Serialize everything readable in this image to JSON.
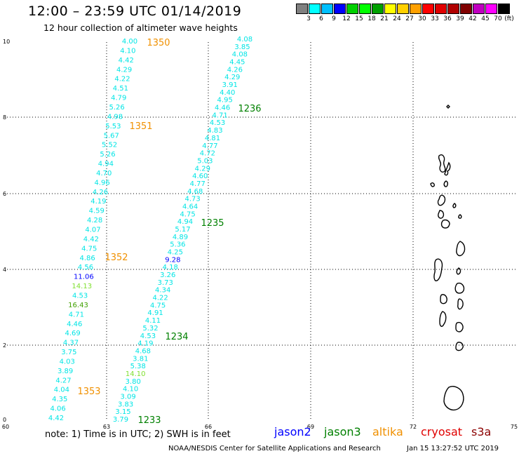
{
  "title": "12:00 – 23:59 UTC 01/14/2019",
  "subtitle": "12 hour collection of altimeter wave heights",
  "colors": {
    "cyan": "#00E5E5",
    "orange": "#F09000",
    "green": "#008000",
    "blue": "#0000FF",
    "lightgreen": "#80E030",
    "olive": "#40A000",
    "darkred": "#8B0000",
    "red": "#E00000",
    "land": "#000000",
    "grid": "#000000"
  },
  "scale": {
    "colors": [
      "#808080",
      "#00FFFF",
      "#00C0FF",
      "#0000FF",
      "#00D000",
      "#00FF00",
      "#00A000",
      "#FFFF00",
      "#FFD000",
      "#FFA000",
      "#FF0000",
      "#E00000",
      "#B00000",
      "#800000",
      "#C000C0",
      "#FF00FF",
      "#000000"
    ],
    "labels": [
      "3",
      "6",
      "9",
      "12",
      "15",
      "18",
      "21",
      "24",
      "27",
      "30",
      "33",
      "36",
      "39",
      "42",
      "45",
      "70"
    ],
    "unit": "(ft)"
  },
  "axes": {
    "x_ticks": [
      "60",
      "63",
      "66",
      "69",
      "72",
      "75"
    ],
    "y_ticks": [
      "0",
      "2",
      "4",
      "6",
      "8",
      "10"
    ]
  },
  "tracks": [
    {
      "name": "1350-1353",
      "values": [
        "4.42",
        "4.06",
        "4.35",
        "4.04",
        "4.27",
        "3.89",
        "4.03",
        "3.75",
        "4.37",
        "4.69",
        "4.46",
        "4.71",
        "16.43",
        "4.53",
        "14.13",
        "11.06",
        "4.56",
        "4.86",
        "4.75",
        "4.42",
        "4.07",
        "4.28",
        "4.59",
        "4.19",
        "4.26",
        "4.96",
        "4.70",
        "4.94",
        "5.26",
        "5.52",
        "5.67",
        "5.53",
        "4.98",
        "5.26",
        "4.79",
        "4.51",
        "4.22",
        "4.29",
        "4.42",
        "4.10",
        "4.00"
      ],
      "colors": [
        "cyan",
        "cyan",
        "cyan",
        "cyan",
        "cyan",
        "cyan",
        "cyan",
        "cyan",
        "cyan",
        "cyan",
        "cyan",
        "cyan",
        "olive",
        "cyan",
        "lightgreen",
        "blue",
        "cyan",
        "cyan",
        "cyan",
        "cyan",
        "cyan",
        "cyan",
        "cyan",
        "cyan",
        "cyan",
        "cyan",
        "cyan",
        "cyan",
        "cyan",
        "cyan",
        "cyan",
        "cyan",
        "cyan",
        "cyan",
        "cyan",
        "cyan",
        "cyan",
        "cyan",
        "cyan",
        "cyan",
        "cyan"
      ]
    },
    {
      "name": "1233-1236",
      "values": [
        "3.79",
        "3.15",
        "3.83",
        "3.09",
        "4.10",
        "3.80",
        "14.10",
        "5.38",
        "3.81",
        "4.68",
        "4.19",
        "4.53",
        "5.32",
        "4.11",
        "4.91",
        "4.75",
        "4.22",
        "4.34",
        "3.73",
        "3.26",
        "4.18",
        "9.28",
        "4.25",
        "5.36",
        "4.89",
        "5.17",
        "4.94",
        "4.75",
        "4.64",
        "4.73",
        "4.68",
        "4.77",
        "4.60",
        "4.29",
        "5.03",
        "4.72",
        "4.77",
        "4.81",
        "4.83",
        "4.53",
        "4.71",
        "4.46",
        "4.95",
        "4.40",
        "3.91",
        "4.29",
        "4.26",
        "4.45",
        "4.08",
        "3.85",
        "4.08"
      ],
      "colors": [
        "cyan",
        "cyan",
        "cyan",
        "cyan",
        "cyan",
        "cyan",
        "lightgreen",
        "cyan",
        "cyan",
        "cyan",
        "cyan",
        "cyan",
        "cyan",
        "cyan",
        "cyan",
        "cyan",
        "cyan",
        "cyan",
        "cyan",
        "cyan",
        "cyan",
        "blue",
        "cyan",
        "cyan",
        "cyan",
        "cyan",
        "cyan",
        "cyan",
        "cyan",
        "cyan",
        "cyan",
        "cyan",
        "cyan",
        "cyan",
        "cyan",
        "cyan",
        "cyan",
        "cyan",
        "cyan",
        "cyan",
        "cyan",
        "cyan",
        "cyan",
        "cyan",
        "cyan",
        "cyan",
        "cyan",
        "cyan",
        "cyan",
        "cyan",
        "cyan"
      ]
    }
  ],
  "time_labels": [
    {
      "text": "1350",
      "color": "orange"
    },
    {
      "text": "1351",
      "color": "orange"
    },
    {
      "text": "1352",
      "color": "orange"
    },
    {
      "text": "1353",
      "color": "orange"
    },
    {
      "text": "1236",
      "color": "green"
    },
    {
      "text": "1235",
      "color": "green"
    },
    {
      "text": "1234",
      "color": "green"
    },
    {
      "text": "1233",
      "color": "green"
    }
  ],
  "note": "note:  1) Time is in UTC;  2) SWH is in feet",
  "satellites": [
    {
      "name": "jason2",
      "color": "blue"
    },
    {
      "name": "jason3",
      "color": "green"
    },
    {
      "name": "altika",
      "color": "orange"
    },
    {
      "name": "cryosat",
      "color": "red"
    },
    {
      "name": "s3a",
      "color": "darkred"
    }
  ],
  "credit": "NOAA/NESDIS Center for Satellite Applications and Research",
  "timestamp": "Jan 15 13:27:52 UTC 2019"
}
